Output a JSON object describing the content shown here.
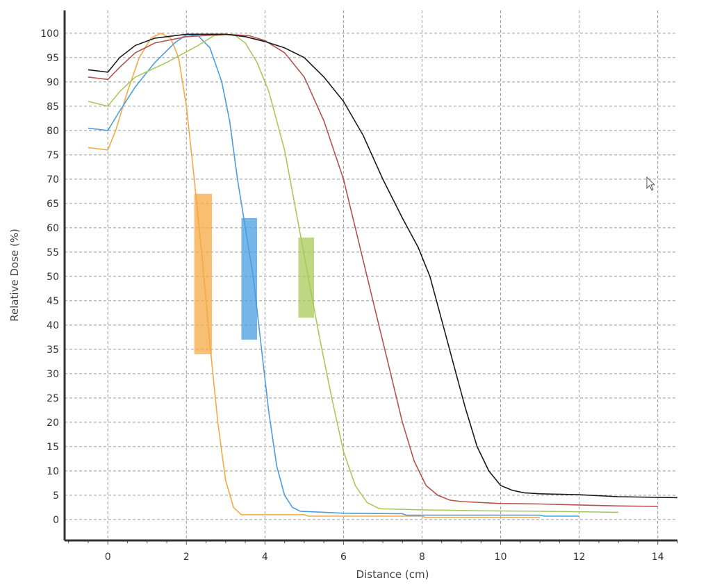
{
  "chart_data": {
    "type": "line",
    "title": "",
    "xlabel": "Distance (cm)",
    "ylabel": "Relative Dose (%)",
    "xlim": [
      -1.1,
      14.5
    ],
    "ylim": [
      -4.3,
      104.7
    ],
    "xticks": [
      0,
      2,
      4,
      6,
      8,
      10,
      12,
      14
    ],
    "yticks": [
      0,
      5,
      10,
      15,
      20,
      25,
      30,
      35,
      40,
      45,
      50,
      55,
      60,
      65,
      70,
      75,
      80,
      85,
      90,
      95,
      100
    ],
    "grid": true,
    "series": [
      {
        "color": "#f5a843",
        "points": [
          [
            -0.5,
            76.5
          ],
          [
            0,
            76
          ],
          [
            0.2,
            80
          ],
          [
            0.5,
            88
          ],
          [
            0.8,
            95
          ],
          [
            1.1,
            99
          ],
          [
            1.35,
            100
          ],
          [
            1.6,
            99
          ],
          [
            1.8,
            95
          ],
          [
            2.0,
            85
          ],
          [
            2.2,
            70
          ],
          [
            2.4,
            54
          ],
          [
            2.6,
            36
          ],
          [
            2.8,
            20
          ],
          [
            3.0,
            8
          ],
          [
            3.2,
            2.5
          ],
          [
            3.4,
            1
          ],
          [
            5,
            1
          ],
          [
            5.1,
            0.7
          ],
          [
            8,
            0.7
          ],
          [
            8.1,
            0.4
          ],
          [
            11,
            0.4
          ]
        ]
      },
      {
        "color": "#4a9de0",
        "points": [
          [
            -0.5,
            80.5
          ],
          [
            0,
            80
          ],
          [
            0.3,
            84
          ],
          [
            0.7,
            89
          ],
          [
            1.2,
            94
          ],
          [
            1.7,
            98
          ],
          [
            2.0,
            99.7
          ],
          [
            2.3,
            99.5
          ],
          [
            2.6,
            97
          ],
          [
            2.9,
            90
          ],
          [
            3.1,
            82
          ],
          [
            3.3,
            70
          ],
          [
            3.5,
            60
          ],
          [
            3.7,
            50
          ],
          [
            3.9,
            36
          ],
          [
            4.1,
            22
          ],
          [
            4.3,
            11
          ],
          [
            4.5,
            5
          ],
          [
            4.7,
            2.5
          ],
          [
            4.9,
            1.7
          ],
          [
            5.5,
            1.5
          ],
          [
            6,
            1.3
          ],
          [
            7.5,
            1.2
          ],
          [
            7.6,
            0.9
          ],
          [
            11,
            0.9
          ],
          [
            11.1,
            0.7
          ],
          [
            12,
            0.7
          ]
        ]
      },
      {
        "color": "#a8c95a",
        "points": [
          [
            -0.5,
            86
          ],
          [
            0,
            85
          ],
          [
            0.3,
            88
          ],
          [
            0.7,
            91
          ],
          [
            1.5,
            94
          ],
          [
            2.3,
            97.5
          ],
          [
            2.7,
            99.5
          ],
          [
            3.2,
            99.8
          ],
          [
            3.5,
            98
          ],
          [
            3.8,
            94
          ],
          [
            4.1,
            88
          ],
          [
            4.5,
            76
          ],
          [
            4.8,
            63
          ],
          [
            5.1,
            50
          ],
          [
            5.4,
            37
          ],
          [
            5.7,
            25
          ],
          [
            6.0,
            14
          ],
          [
            6.3,
            7
          ],
          [
            6.6,
            3.5
          ],
          [
            6.9,
            2.3
          ],
          [
            7,
            2.2
          ],
          [
            8,
            2
          ],
          [
            9.5,
            1.8
          ],
          [
            11,
            1.7
          ],
          [
            13,
            1.5
          ]
        ]
      },
      {
        "color": "#b5514f",
        "points": [
          [
            -0.5,
            91
          ],
          [
            0,
            90.5
          ],
          [
            0.3,
            93
          ],
          [
            0.7,
            96
          ],
          [
            1.2,
            98
          ],
          [
            2,
            99.3
          ],
          [
            3,
            99.8
          ],
          [
            3.6,
            99.5
          ],
          [
            4,
            98.5
          ],
          [
            4.5,
            96
          ],
          [
            5,
            91
          ],
          [
            5.5,
            82
          ],
          [
            6,
            70
          ],
          [
            6.3,
            60
          ],
          [
            6.6,
            50
          ],
          [
            6.9,
            40
          ],
          [
            7.2,
            30
          ],
          [
            7.5,
            20
          ],
          [
            7.8,
            12
          ],
          [
            8.1,
            7
          ],
          [
            8.4,
            5
          ],
          [
            8.7,
            4
          ],
          [
            9,
            3.7
          ],
          [
            10,
            3.3
          ],
          [
            11,
            3.2
          ],
          [
            12,
            3
          ],
          [
            13,
            2.8
          ],
          [
            14,
            2.7
          ]
        ]
      },
      {
        "color": "#1a1a1a",
        "points": [
          [
            -0.5,
            92.5
          ],
          [
            0,
            92
          ],
          [
            0.3,
            95
          ],
          [
            0.7,
            97.5
          ],
          [
            1.2,
            99
          ],
          [
            2,
            99.8
          ],
          [
            3,
            99.8
          ],
          [
            3.5,
            99.3
          ],
          [
            4,
            98.3
          ],
          [
            4.5,
            97
          ],
          [
            5,
            95
          ],
          [
            5.5,
            91
          ],
          [
            6,
            86
          ],
          [
            6.5,
            79
          ],
          [
            7,
            70
          ],
          [
            7.5,
            62
          ],
          [
            7.9,
            56
          ],
          [
            8.2,
            50
          ],
          [
            8.5,
            41
          ],
          [
            8.8,
            32
          ],
          [
            9.1,
            23
          ],
          [
            9.4,
            15
          ],
          [
            9.7,
            10
          ],
          [
            10,
            7
          ],
          [
            10.3,
            6
          ],
          [
            10.6,
            5.5
          ],
          [
            11,
            5.3
          ],
          [
            12,
            5.1
          ],
          [
            13,
            4.7
          ],
          [
            14.5,
            4.5
          ]
        ]
      }
    ],
    "bands": [
      {
        "color": "#f5a843",
        "x": [
          2.2,
          2.65
        ],
        "y": [
          34,
          67
        ]
      },
      {
        "color": "#4a9de0",
        "x": [
          3.4,
          3.8
        ],
        "y": [
          37,
          62
        ]
      },
      {
        "color": "#a8c95a",
        "x": [
          4.85,
          5.25
        ],
        "y": [
          41.5,
          58
        ]
      }
    ]
  }
}
